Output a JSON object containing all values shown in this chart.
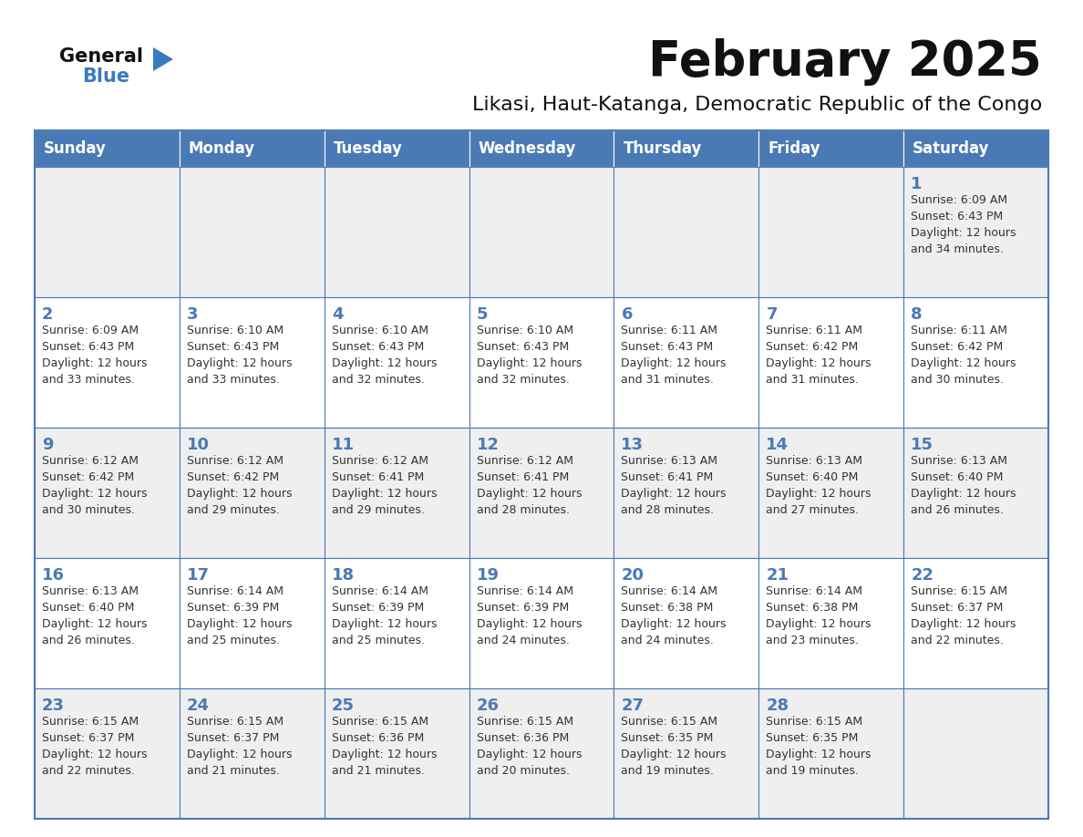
{
  "title": "February 2025",
  "subtitle": "Likasi, Haut-Katanga, Democratic Republic of the Congo",
  "days_of_week": [
    "Sunday",
    "Monday",
    "Tuesday",
    "Wednesday",
    "Thursday",
    "Friday",
    "Saturday"
  ],
  "header_bg_color": "#4a7ab5",
  "header_text_color": "#ffffff",
  "cell_bg_even": "#efefef",
  "cell_bg_odd": "#ffffff",
  "cell_border_color": "#4a7ab5",
  "text_color": "#333333",
  "day_num_color": "#4a7ab5",
  "title_color": "#111111",
  "logo_general_color": "#111111",
  "logo_blue_color": "#3a7abf",
  "calendar_data": [
    [
      null,
      null,
      null,
      null,
      null,
      null,
      {
        "day": 1,
        "sunrise": "6:09 AM",
        "sunset": "6:43 PM",
        "daylight": "12 hours and 34 minutes."
      }
    ],
    [
      {
        "day": 2,
        "sunrise": "6:09 AM",
        "sunset": "6:43 PM",
        "daylight": "12 hours and 33 minutes."
      },
      {
        "day": 3,
        "sunrise": "6:10 AM",
        "sunset": "6:43 PM",
        "daylight": "12 hours and 33 minutes."
      },
      {
        "day": 4,
        "sunrise": "6:10 AM",
        "sunset": "6:43 PM",
        "daylight": "12 hours and 32 minutes."
      },
      {
        "day": 5,
        "sunrise": "6:10 AM",
        "sunset": "6:43 PM",
        "daylight": "12 hours and 32 minutes."
      },
      {
        "day": 6,
        "sunrise": "6:11 AM",
        "sunset": "6:43 PM",
        "daylight": "12 hours and 31 minutes."
      },
      {
        "day": 7,
        "sunrise": "6:11 AM",
        "sunset": "6:42 PM",
        "daylight": "12 hours and 31 minutes."
      },
      {
        "day": 8,
        "sunrise": "6:11 AM",
        "sunset": "6:42 PM",
        "daylight": "12 hours and 30 minutes."
      }
    ],
    [
      {
        "day": 9,
        "sunrise": "6:12 AM",
        "sunset": "6:42 PM",
        "daylight": "12 hours and 30 minutes."
      },
      {
        "day": 10,
        "sunrise": "6:12 AM",
        "sunset": "6:42 PM",
        "daylight": "12 hours and 29 minutes."
      },
      {
        "day": 11,
        "sunrise": "6:12 AM",
        "sunset": "6:41 PM",
        "daylight": "12 hours and 29 minutes."
      },
      {
        "day": 12,
        "sunrise": "6:12 AM",
        "sunset": "6:41 PM",
        "daylight": "12 hours and 28 minutes."
      },
      {
        "day": 13,
        "sunrise": "6:13 AM",
        "sunset": "6:41 PM",
        "daylight": "12 hours and 28 minutes."
      },
      {
        "day": 14,
        "sunrise": "6:13 AM",
        "sunset": "6:40 PM",
        "daylight": "12 hours and 27 minutes."
      },
      {
        "day": 15,
        "sunrise": "6:13 AM",
        "sunset": "6:40 PM",
        "daylight": "12 hours and 26 minutes."
      }
    ],
    [
      {
        "day": 16,
        "sunrise": "6:13 AM",
        "sunset": "6:40 PM",
        "daylight": "12 hours and 26 minutes."
      },
      {
        "day": 17,
        "sunrise": "6:14 AM",
        "sunset": "6:39 PM",
        "daylight": "12 hours and 25 minutes."
      },
      {
        "day": 18,
        "sunrise": "6:14 AM",
        "sunset": "6:39 PM",
        "daylight": "12 hours and 25 minutes."
      },
      {
        "day": 19,
        "sunrise": "6:14 AM",
        "sunset": "6:39 PM",
        "daylight": "12 hours and 24 minutes."
      },
      {
        "day": 20,
        "sunrise": "6:14 AM",
        "sunset": "6:38 PM",
        "daylight": "12 hours and 24 minutes."
      },
      {
        "day": 21,
        "sunrise": "6:14 AM",
        "sunset": "6:38 PM",
        "daylight": "12 hours and 23 minutes."
      },
      {
        "day": 22,
        "sunrise": "6:15 AM",
        "sunset": "6:37 PM",
        "daylight": "12 hours and 22 minutes."
      }
    ],
    [
      {
        "day": 23,
        "sunrise": "6:15 AM",
        "sunset": "6:37 PM",
        "daylight": "12 hours and 22 minutes."
      },
      {
        "day": 24,
        "sunrise": "6:15 AM",
        "sunset": "6:37 PM",
        "daylight": "12 hours and 21 minutes."
      },
      {
        "day": 25,
        "sunrise": "6:15 AM",
        "sunset": "6:36 PM",
        "daylight": "12 hours and 21 minutes."
      },
      {
        "day": 26,
        "sunrise": "6:15 AM",
        "sunset": "6:36 PM",
        "daylight": "12 hours and 20 minutes."
      },
      {
        "day": 27,
        "sunrise": "6:15 AM",
        "sunset": "6:35 PM",
        "daylight": "12 hours and 19 minutes."
      },
      {
        "day": 28,
        "sunrise": "6:15 AM",
        "sunset": "6:35 PM",
        "daylight": "12 hours and 19 minutes."
      },
      null
    ]
  ],
  "figsize": [
    11.88,
    9.18
  ],
  "dpi": 100
}
